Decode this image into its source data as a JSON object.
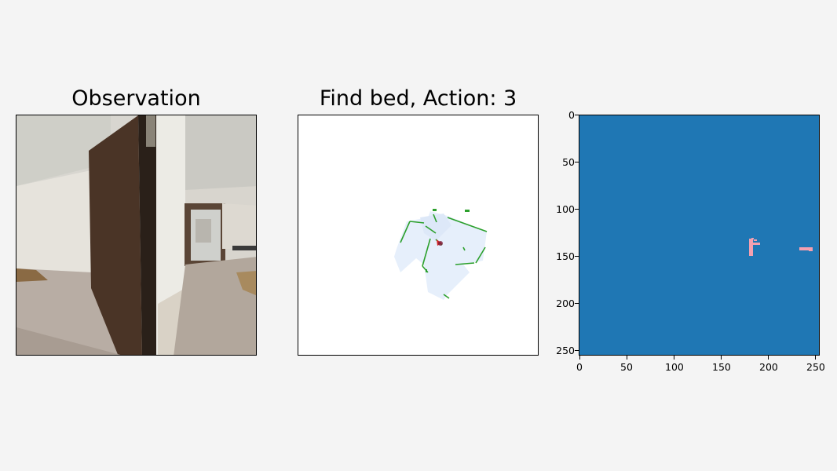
{
  "panels": {
    "observation": {
      "title": "Observation"
    },
    "map": {
      "title": "Find bed, Action: 3"
    },
    "semantic": {
      "x_ticks": [
        "0",
        "50",
        "100",
        "150",
        "200",
        "250"
      ],
      "y_ticks": [
        "0",
        "50",
        "100",
        "150",
        "200",
        "250"
      ],
      "axis_range": [
        0,
        256
      ],
      "background_color": "#1f77b4",
      "blob_color": "#f4a0b0"
    }
  },
  "colors": {
    "page_bg": "#f4f4f4",
    "explored": "#e6effb",
    "obstacle": "#2ca02c",
    "agent": "#d62728"
  }
}
